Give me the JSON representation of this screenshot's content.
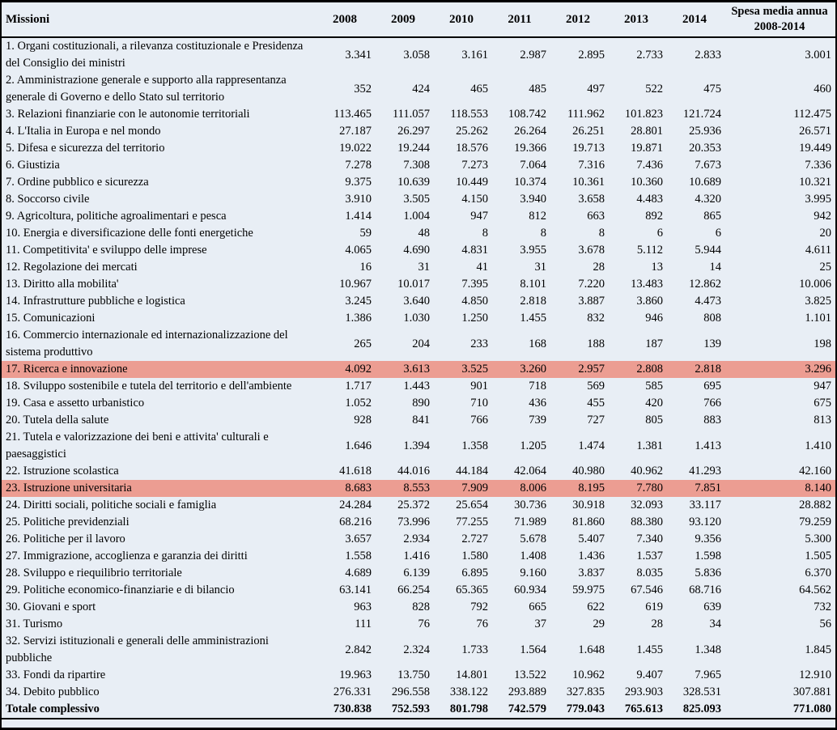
{
  "table": {
    "header": {
      "missions_label": "Missioni",
      "years": [
        "2008",
        "2009",
        "2010",
        "2011",
        "2012",
        "2013",
        "2014"
      ],
      "avg_label": "Spesa media annua 2008-2014"
    },
    "rows": [
      {
        "label": "1. Organi costituzionali, a rilevanza costituzionale e Presidenza del Consiglio dei ministri",
        "values": [
          "3.341",
          "3.058",
          "3.161",
          "2.987",
          "2.895",
          "2.733",
          "2.833"
        ],
        "avg": "3.001",
        "highlighted": false
      },
      {
        "label": "2. Amministrazione generale e supporto alla rappresentanza generale di Governo e dello Stato sul territorio",
        "values": [
          "352",
          "424",
          "465",
          "485",
          "497",
          "522",
          "475"
        ],
        "avg": "460",
        "highlighted": false
      },
      {
        "label": "3. Relazioni finanziarie con le autonomie territoriali",
        "values": [
          "113.465",
          "111.057",
          "118.553",
          "108.742",
          "111.962",
          "101.823",
          "121.724"
        ],
        "avg": "112.475",
        "highlighted": false
      },
      {
        "label": "4. L'Italia in Europa e nel mondo",
        "values": [
          "27.187",
          "26.297",
          "25.262",
          "26.264",
          "26.251",
          "28.801",
          "25.936"
        ],
        "avg": "26.571",
        "highlighted": false
      },
      {
        "label": "5. Difesa e sicurezza del territorio",
        "values": [
          "19.022",
          "19.244",
          "18.576",
          "19.366",
          "19.713",
          "19.871",
          "20.353"
        ],
        "avg": "19.449",
        "highlighted": false
      },
      {
        "label": "6. Giustizia",
        "values": [
          "7.278",
          "7.308",
          "7.273",
          "7.064",
          "7.316",
          "7.436",
          "7.673"
        ],
        "avg": "7.336",
        "highlighted": false
      },
      {
        "label": "7. Ordine pubblico e sicurezza",
        "values": [
          "9.375",
          "10.639",
          "10.449",
          "10.374",
          "10.361",
          "10.360",
          "10.689"
        ],
        "avg": "10.321",
        "highlighted": false
      },
      {
        "label": "8. Soccorso civile",
        "values": [
          "3.910",
          "3.505",
          "4.150",
          "3.940",
          "3.658",
          "4.483",
          "4.320"
        ],
        "avg": "3.995",
        "highlighted": false
      },
      {
        "label": "9. Agricoltura, politiche agroalimentari e pesca",
        "values": [
          "1.414",
          "1.004",
          "947",
          "812",
          "663",
          "892",
          "865"
        ],
        "avg": "942",
        "highlighted": false
      },
      {
        "label": "10. Energia e diversificazione delle fonti energetiche",
        "values": [
          "59",
          "48",
          "8",
          "8",
          "8",
          "6",
          "6"
        ],
        "avg": "20",
        "highlighted": false
      },
      {
        "label": "11. Competitivita' e sviluppo delle imprese",
        "values": [
          "4.065",
          "4.690",
          "4.831",
          "3.955",
          "3.678",
          "5.112",
          "5.944"
        ],
        "avg": "4.611",
        "highlighted": false
      },
      {
        "label": "12. Regolazione dei mercati",
        "values": [
          "16",
          "31",
          "41",
          "31",
          "28",
          "13",
          "14"
        ],
        "avg": "25",
        "highlighted": false
      },
      {
        "label": "13. Diritto alla mobilita'",
        "values": [
          "10.967",
          "10.017",
          "7.395",
          "8.101",
          "7.220",
          "13.483",
          "12.862"
        ],
        "avg": "10.006",
        "highlighted": false
      },
      {
        "label": "14. Infrastrutture pubbliche e logistica",
        "values": [
          "3.245",
          "3.640",
          "4.850",
          "2.818",
          "3.887",
          "3.860",
          "4.473"
        ],
        "avg": "3.825",
        "highlighted": false
      },
      {
        "label": "15. Comunicazioni",
        "values": [
          "1.386",
          "1.030",
          "1.250",
          "1.455",
          "832",
          "946",
          "808"
        ],
        "avg": "1.101",
        "highlighted": false
      },
      {
        "label": "16. Commercio internazionale ed internazionalizzazione del sistema produttivo",
        "values": [
          "265",
          "204",
          "233",
          "168",
          "188",
          "187",
          "139"
        ],
        "avg": "198",
        "highlighted": false
      },
      {
        "label": "17. Ricerca e innovazione",
        "values": [
          "4.092",
          "3.613",
          "3.525",
          "3.260",
          "2.957",
          "2.808",
          "2.818"
        ],
        "avg": "3.296",
        "highlighted": true
      },
      {
        "label": "18. Sviluppo sostenibile e tutela del territorio e dell'ambiente",
        "values": [
          "1.717",
          "1.443",
          "901",
          "718",
          "569",
          "585",
          "695"
        ],
        "avg": "947",
        "highlighted": false
      },
      {
        "label": "19. Casa e assetto urbanistico",
        "values": [
          "1.052",
          "890",
          "710",
          "436",
          "455",
          "420",
          "766"
        ],
        "avg": "675",
        "highlighted": false
      },
      {
        "label": "20. Tutela della salute",
        "values": [
          "928",
          "841",
          "766",
          "739",
          "727",
          "805",
          "883"
        ],
        "avg": "813",
        "highlighted": false
      },
      {
        "label": "21. Tutela e valorizzazione dei beni e attivita' culturali e paesaggistici",
        "values": [
          "1.646",
          "1.394",
          "1.358",
          "1.205",
          "1.474",
          "1.381",
          "1.413"
        ],
        "avg": "1.410",
        "highlighted": false
      },
      {
        "label": "22. Istruzione scolastica",
        "values": [
          "41.618",
          "44.016",
          "44.184",
          "42.064",
          "40.980",
          "40.962",
          "41.293"
        ],
        "avg": "42.160",
        "highlighted": false
      },
      {
        "label": "23. Istruzione universitaria",
        "values": [
          "8.683",
          "8.553",
          "7.909",
          "8.006",
          "8.195",
          "7.780",
          "7.851"
        ],
        "avg": "8.140",
        "highlighted": true
      },
      {
        "label": "24. Diritti sociali, politiche sociali e famiglia",
        "values": [
          "24.284",
          "25.372",
          "25.654",
          "30.736",
          "30.918",
          "32.093",
          "33.117"
        ],
        "avg": "28.882",
        "highlighted": false
      },
      {
        "label": "25. Politiche previdenziali",
        "values": [
          "68.216",
          "73.996",
          "77.255",
          "71.989",
          "81.860",
          "88.380",
          "93.120"
        ],
        "avg": "79.259",
        "highlighted": false
      },
      {
        "label": "26. Politiche per il lavoro",
        "values": [
          "3.657",
          "2.934",
          "2.727",
          "5.678",
          "5.407",
          "7.340",
          "9.356"
        ],
        "avg": "5.300",
        "highlighted": false
      },
      {
        "label": "27. Immigrazione, accoglienza e garanzia dei diritti",
        "values": [
          "1.558",
          "1.416",
          "1.580",
          "1.408",
          "1.436",
          "1.537",
          "1.598"
        ],
        "avg": "1.505",
        "highlighted": false
      },
      {
        "label": "28. Sviluppo e riequilibrio territoriale",
        "values": [
          "4.689",
          "6.139",
          "6.895",
          "9.160",
          "3.837",
          "8.035",
          "5.836"
        ],
        "avg": "6.370",
        "highlighted": false
      },
      {
        "label": "29. Politiche economico-finanziarie e di bilancio",
        "values": [
          "63.141",
          "66.254",
          "65.365",
          "60.934",
          "59.975",
          "67.546",
          "68.716"
        ],
        "avg": "64.562",
        "highlighted": false
      },
      {
        "label": "30. Giovani e sport",
        "values": [
          "963",
          "828",
          "792",
          "665",
          "622",
          "619",
          "639"
        ],
        "avg": "732",
        "highlighted": false
      },
      {
        "label": "31. Turismo",
        "values": [
          "111",
          "76",
          "76",
          "37",
          "29",
          "28",
          "34"
        ],
        "avg": "56",
        "highlighted": false
      },
      {
        "label": "32. Servizi istituzionali e generali delle amministrazioni pubbliche",
        "values": [
          "2.842",
          "2.324",
          "1.733",
          "1.564",
          "1.648",
          "1.455",
          "1.348"
        ],
        "avg": "1.845",
        "highlighted": false
      },
      {
        "label": "33. Fondi da ripartire",
        "values": [
          "19.963",
          "13.750",
          "14.801",
          "13.522",
          "10.962",
          "9.407",
          "7.965"
        ],
        "avg": "12.910",
        "highlighted": false
      },
      {
        "label": "34. Debito pubblico",
        "values": [
          "276.331",
          "296.558",
          "338.122",
          "293.889",
          "327.835",
          "293.903",
          "328.531"
        ],
        "avg": "307.881",
        "highlighted": false
      }
    ],
    "total": {
      "label": "Totale complessivo",
      "values": [
        "730.838",
        "752.593",
        "801.798",
        "742.579",
        "779.043",
        "765.613",
        "825.093"
      ],
      "avg": "771.080"
    }
  },
  "colors": {
    "table_background": "#e8eef5",
    "highlight_row": "#ec9d92",
    "border": "#000000",
    "text": "#000000"
  }
}
